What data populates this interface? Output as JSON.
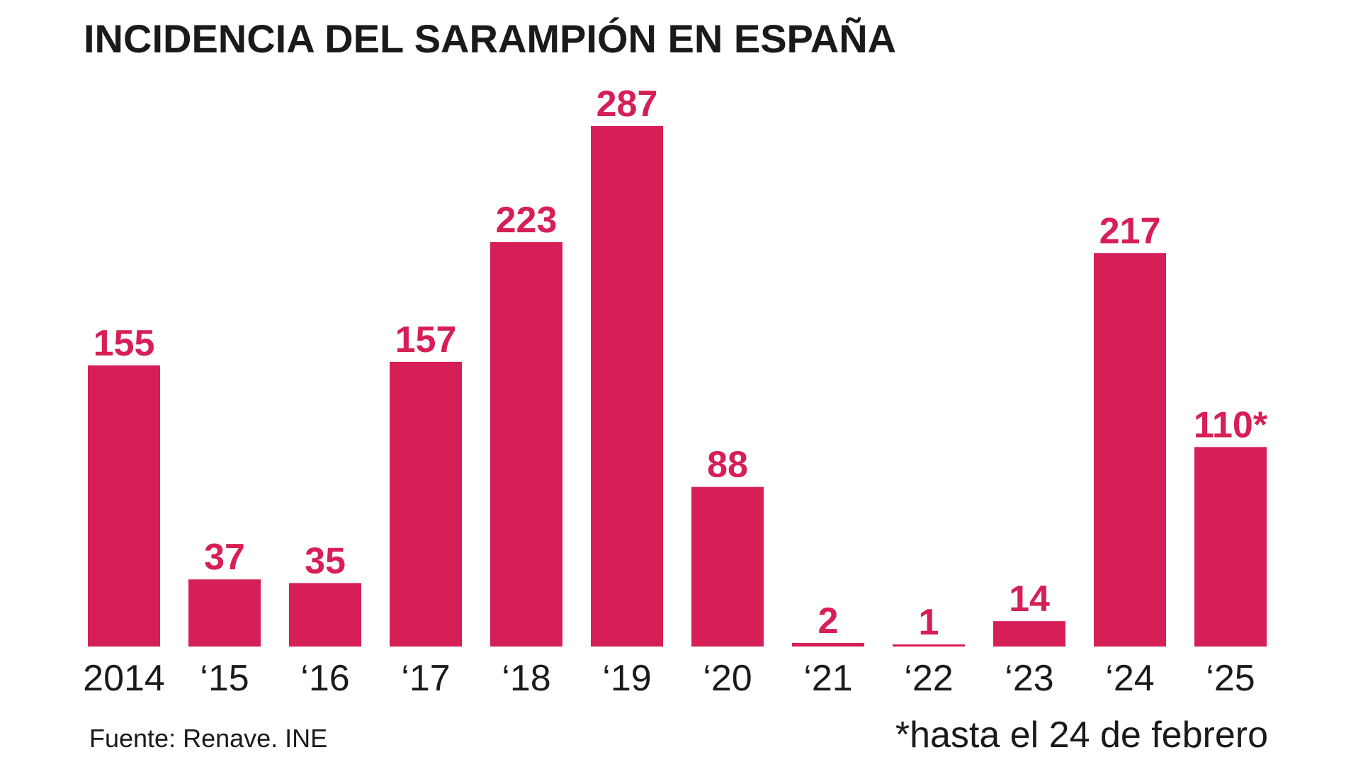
{
  "chart_data": {
    "type": "bar",
    "title": "INCIDENCIA DEL SARAMPIÓN EN ESPAÑA",
    "categories": [
      "2014",
      "‘15",
      "‘16",
      "‘17",
      "‘18",
      "‘19",
      "‘20",
      "‘21",
      "‘22",
      "‘23",
      "‘24",
      "‘25"
    ],
    "values": [
      155,
      37,
      35,
      157,
      223,
      287,
      88,
      2,
      1,
      14,
      217,
      110
    ],
    "value_labels": [
      "155",
      "37",
      "35",
      "157",
      "223",
      "287",
      "88",
      "2",
      "1",
      "14",
      "217",
      "110*"
    ],
    "xlabel": "",
    "ylabel": "",
    "ylim": [
      0,
      287
    ],
    "grid": false,
    "legend": "none",
    "bar_color": "#d61f56",
    "source": "Fuente: Renave. INE",
    "footnote": "*hasta el 24 de febrero"
  }
}
